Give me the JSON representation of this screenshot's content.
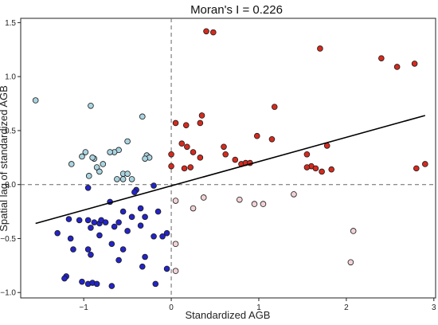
{
  "chart_data": {
    "type": "scatter",
    "title": "Moran's I = 0.226",
    "xlabel": "Standardized AGB",
    "ylabel": "Spatial lag of standardized AGB",
    "xlim": [
      -1.72,
      3.02
    ],
    "ylim": [
      -1.05,
      1.54
    ],
    "x_ticks": [
      -1,
      0,
      1,
      2,
      3
    ],
    "y_ticks": [
      -1.0,
      -0.5,
      0.0,
      0.5,
      1.0,
      1.5
    ],
    "x_tick_labels": [
      "−1",
      "0",
      "1",
      "2",
      "3"
    ],
    "y_tick_labels": [
      "−1.0",
      "−0.5",
      "0.0",
      "0.5",
      "1.0",
      "1.5"
    ],
    "reference_lines": {
      "x": 0,
      "y": 0,
      "style": "dashed"
    },
    "regression_line": {
      "x": [
        -1.55,
        2.9
      ],
      "y": [
        -0.36,
        0.64
      ]
    },
    "grid": false,
    "legend": "none",
    "series": [
      {
        "quadrant": "high-high",
        "color": "#d62a1e",
        "points": [
          [
            0.4,
            1.42
          ],
          [
            0.48,
            1.41
          ],
          [
            1.7,
            1.26
          ],
          [
            2.4,
            1.17
          ],
          [
            2.78,
            1.12
          ],
          [
            2.58,
            1.09
          ],
          [
            1.18,
            0.72
          ],
          [
            0.35,
            0.64
          ],
          [
            0.33,
            0.57
          ],
          [
            0.05,
            0.57
          ],
          [
            0.17,
            0.55
          ],
          [
            0.98,
            0.45
          ],
          [
            1.15,
            0.42
          ],
          [
            0.6,
            0.35
          ],
          [
            0.62,
            0.28
          ],
          [
            0.0,
            0.28
          ],
          [
            0.25,
            0.3
          ],
          [
            0.33,
            0.25
          ],
          [
            0.12,
            0.38
          ],
          [
            0.18,
            0.35
          ],
          [
            0.73,
            0.23
          ],
          [
            0.8,
            0.19
          ],
          [
            0.85,
            0.2
          ],
          [
            0.9,
            0.2
          ],
          [
            1.55,
            0.28
          ],
          [
            1.6,
            0.17
          ],
          [
            1.65,
            0.15
          ],
          [
            1.72,
            0.12
          ],
          [
            1.83,
            0.14
          ],
          [
            1.78,
            0.36
          ],
          [
            1.55,
            0.16
          ],
          [
            2.9,
            0.19
          ],
          [
            2.8,
            0.15
          ],
          [
            0.0,
            0.17
          ],
          [
            0.15,
            0.15
          ],
          [
            0.22,
            0.16
          ]
        ]
      },
      {
        "quadrant": "low-high",
        "color": "#a9d4e0",
        "points": [
          [
            -1.55,
            0.78
          ],
          [
            -0.92,
            0.73
          ],
          [
            -0.33,
            0.63
          ],
          [
            -0.5,
            0.4
          ],
          [
            -0.6,
            0.32
          ],
          [
            -0.65,
            0.3
          ],
          [
            -0.98,
            0.3
          ],
          [
            -0.88,
            0.24
          ],
          [
            -0.7,
            0.3
          ],
          [
            -0.9,
            0.25
          ],
          [
            -1.02,
            0.26
          ],
          [
            -1.14,
            0.19
          ],
          [
            -0.28,
            0.27
          ],
          [
            -0.25,
            0.25
          ],
          [
            -0.3,
            0.24
          ],
          [
            -0.85,
            0.16
          ],
          [
            -0.78,
            0.19
          ],
          [
            -0.82,
            0.12
          ],
          [
            -0.94,
            0.08
          ],
          [
            -0.55,
            0.1
          ],
          [
            -0.5,
            0.1
          ],
          [
            -0.62,
            0.05
          ],
          [
            -0.55,
            0.05
          ],
          [
            -0.45,
            0.05
          ]
        ]
      },
      {
        "quadrant": "low-low",
        "color": "#2424c8",
        "points": [
          [
            -0.95,
            -0.03
          ],
          [
            -0.4,
            -0.05
          ],
          [
            -0.2,
            -0.01
          ],
          [
            -0.42,
            -0.07
          ],
          [
            -0.7,
            -0.16
          ],
          [
            -0.35,
            -0.22
          ],
          [
            -0.55,
            -0.25
          ],
          [
            -0.3,
            -0.3
          ],
          [
            -0.45,
            -0.3
          ],
          [
            -0.15,
            -0.25
          ],
          [
            -1.17,
            -0.32
          ],
          [
            -1.05,
            -0.33
          ],
          [
            -0.95,
            -0.33
          ],
          [
            -0.88,
            -0.35
          ],
          [
            -0.82,
            -0.36
          ],
          [
            -0.8,
            -0.33
          ],
          [
            -0.75,
            -0.35
          ],
          [
            -0.65,
            -0.39
          ],
          [
            -0.6,
            -0.35
          ],
          [
            -0.92,
            -0.4
          ],
          [
            -1.3,
            -0.45
          ],
          [
            -1.15,
            -0.5
          ],
          [
            -0.82,
            -0.47
          ],
          [
            -0.5,
            -0.43
          ],
          [
            -0.35,
            -0.38
          ],
          [
            -0.1,
            -0.48
          ],
          [
            -0.05,
            -0.45
          ],
          [
            -0.2,
            -0.48
          ],
          [
            -0.55,
            -0.6
          ],
          [
            -0.68,
            -0.55
          ],
          [
            -0.95,
            -0.6
          ],
          [
            -1.12,
            -0.6
          ],
          [
            -0.92,
            -0.65
          ],
          [
            -0.3,
            -0.67
          ],
          [
            -0.6,
            -0.7
          ],
          [
            -0.05,
            -0.78
          ],
          [
            -0.33,
            -0.76
          ],
          [
            -1.2,
            -0.85
          ],
          [
            -1.22,
            -0.87
          ],
          [
            -1.02,
            -0.9
          ],
          [
            -0.95,
            -0.92
          ],
          [
            -0.9,
            -0.91
          ],
          [
            -0.85,
            -0.92
          ],
          [
            -0.68,
            -0.94
          ],
          [
            -0.18,
            -0.92
          ]
        ]
      },
      {
        "quadrant": "high-low",
        "color": "#f2d2d6",
        "points": [
          [
            0.05,
            -0.15
          ],
          [
            0.37,
            -0.12
          ],
          [
            0.78,
            -0.14
          ],
          [
            0.95,
            -0.18
          ],
          [
            1.05,
            -0.18
          ],
          [
            1.4,
            -0.09
          ],
          [
            0.25,
            -0.22
          ],
          [
            0.05,
            -0.55
          ],
          [
            2.08,
            -0.43
          ],
          [
            2.05,
            -0.72
          ],
          [
            0.05,
            -0.8
          ]
        ]
      }
    ]
  }
}
